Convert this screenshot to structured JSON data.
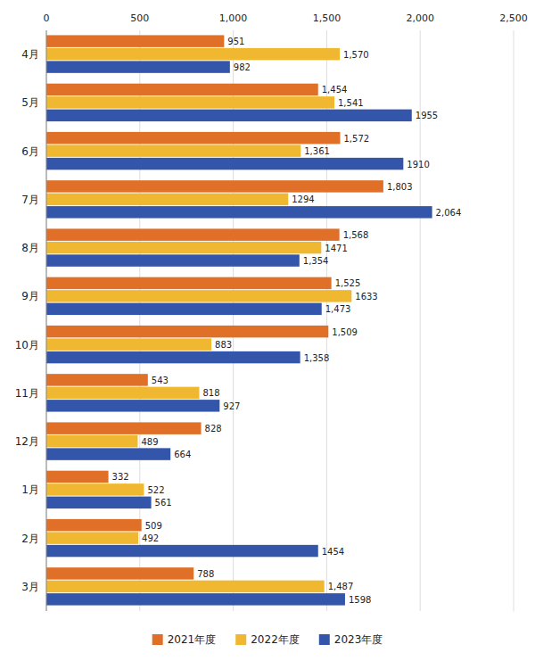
{
  "chart_data": {
    "type": "bar",
    "orientation": "horizontal",
    "categories": [
      "4月",
      "5月",
      "6月",
      "7月",
      "8月",
      "9月",
      "10月",
      "11月",
      "12月",
      "1月",
      "2月",
      "3月"
    ],
    "series": [
      {
        "name": "2021年度",
        "color": "#E07028",
        "values": [
          951,
          1454,
          1572,
          1803,
          1568,
          1525,
          1509,
          543,
          828,
          332,
          509,
          788
        ],
        "value_labels": [
          "951",
          "1,454",
          "1,572",
          "1,803",
          "1,568",
          "1,525",
          "1,509",
          "543",
          "828",
          "332",
          "509",
          "788"
        ]
      },
      {
        "name": "2022年度",
        "color": "#F0B830",
        "values": [
          1570,
          1541,
          1361,
          1294,
          1471,
          1633,
          883,
          818,
          489,
          522,
          492,
          1487
        ],
        "value_labels": [
          "1,570",
          "1,541",
          "1,361",
          "1294",
          "1471",
          "1633",
          "883",
          "818",
          "489",
          "522",
          "492",
          "1,487"
        ]
      },
      {
        "name": "2023年度",
        "color": "#3355AA",
        "values": [
          982,
          1955,
          1910,
          2064,
          1354,
          1473,
          1358,
          927,
          664,
          561,
          1454,
          1598
        ],
        "value_labels": [
          "982",
          "1955",
          "1910",
          "2,064",
          "1,354",
          "1,473",
          "1,358",
          "927",
          "664",
          "561",
          "1454",
          "1598"
        ]
      }
    ],
    "xlim": [
      0,
      2500
    ],
    "xticks": [
      0,
      500,
      {
        "value": 1000,
        "label": "1,000"
      },
      {
        "value": 1500,
        "label": "1,500"
      },
      {
        "value": 2000,
        "label": "2,000"
      },
      {
        "value": 2500,
        "label": "2,500"
      }
    ],
    "grid": true,
    "legend": "bottom",
    "data_labels": true
  }
}
